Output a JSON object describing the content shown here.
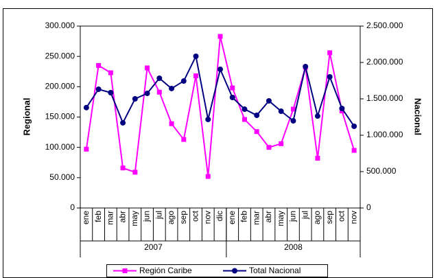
{
  "chart_data": {
    "type": "line",
    "groups": [
      {
        "name": "2007",
        "categories": [
          "ene",
          "feb",
          "mar",
          "abr",
          "may",
          "jun",
          "jul",
          "ago",
          "sep",
          "oct",
          "nov",
          "dic"
        ]
      },
      {
        "name": "2008",
        "categories": [
          "ene",
          "feb",
          "mar",
          "abr",
          "may",
          "jun",
          "jul",
          "ago",
          "sep",
          "oct",
          "nov"
        ]
      }
    ],
    "y_label": "Regional",
    "y2_label": "Nacional",
    "ylim": [
      0,
      300000
    ],
    "yticks": [
      0,
      {
        "value": 50000,
        "label": "50.000"
      },
      {
        "value": 100000,
        "label": "100.000"
      },
      {
        "value": 150000,
        "label": "150.000"
      },
      {
        "value": 200000,
        "label": "200.000"
      },
      {
        "value": 250000,
        "label": "250.000"
      },
      {
        "value": 300000,
        "label": "300.000"
      }
    ],
    "y2lim": [
      0,
      2500000
    ],
    "y2ticks": [
      0,
      {
        "value": 500000,
        "label": "500.000"
      },
      {
        "value": 1000000,
        "label": "1.000.000"
      },
      {
        "value": 1500000,
        "label": "1.500.000"
      },
      {
        "value": 2000000,
        "label": "2.000.000"
      },
      {
        "value": 2500000,
        "label": "2.500.000"
      }
    ],
    "grid": false,
    "legend": "bottom",
    "series": [
      {
        "name": "Región Caribe",
        "color": "#ff00ff",
        "marker": "square",
        "values": [
          97000,
          235000,
          223000,
          66000,
          59000,
          231000,
          191000,
          139000,
          113000,
          218000,
          52000,
          283000,
          198000,
          146000,
          126000,
          100000,
          106000,
          163000,
          232000,
          82000,
          256000,
          160000,
          95000
        ]
      },
      {
        "name": "Total Nacional",
        "color": "#000080",
        "marker": "circle",
        "axis": "y2",
        "values": [
          1380000,
          1632000,
          1585000,
          1170000,
          1500000,
          1575000,
          1783000,
          1642000,
          1745000,
          2085000,
          1217000,
          1906000,
          1519000,
          1358000,
          1274000,
          1472000,
          1330000,
          1198000,
          1943000,
          1264000,
          1802000,
          1368000,
          1123000
        ]
      }
    ]
  }
}
